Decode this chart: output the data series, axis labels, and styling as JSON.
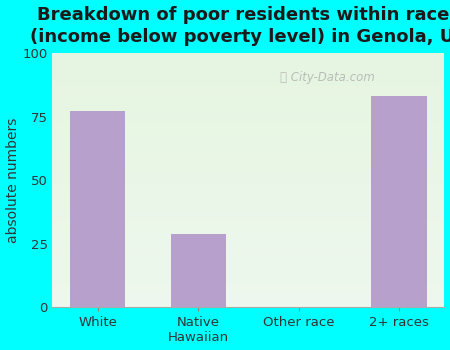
{
  "title": "Breakdown of poor residents within races\n(income below poverty level) in Genola, UT",
  "categories": [
    "White",
    "Native\nHawaiian",
    "Other race",
    "2+ races"
  ],
  "values": [
    77,
    29,
    0,
    83
  ],
  "bar_color": "#b8a0cc",
  "ylabel": "absolute numbers",
  "ylim": [
    0,
    100
  ],
  "yticks": [
    0,
    25,
    50,
    75,
    100
  ],
  "background_color": "#00ffff",
  "plot_bg_color": "#e8f5e8",
  "title_fontsize": 13,
  "title_color": "#1a1a1a",
  "axis_label_fontsize": 10,
  "tick_fontsize": 9.5,
  "watermark": "City-Data.com",
  "grid_color": "#c8e0c8",
  "bar_width": 0.55
}
